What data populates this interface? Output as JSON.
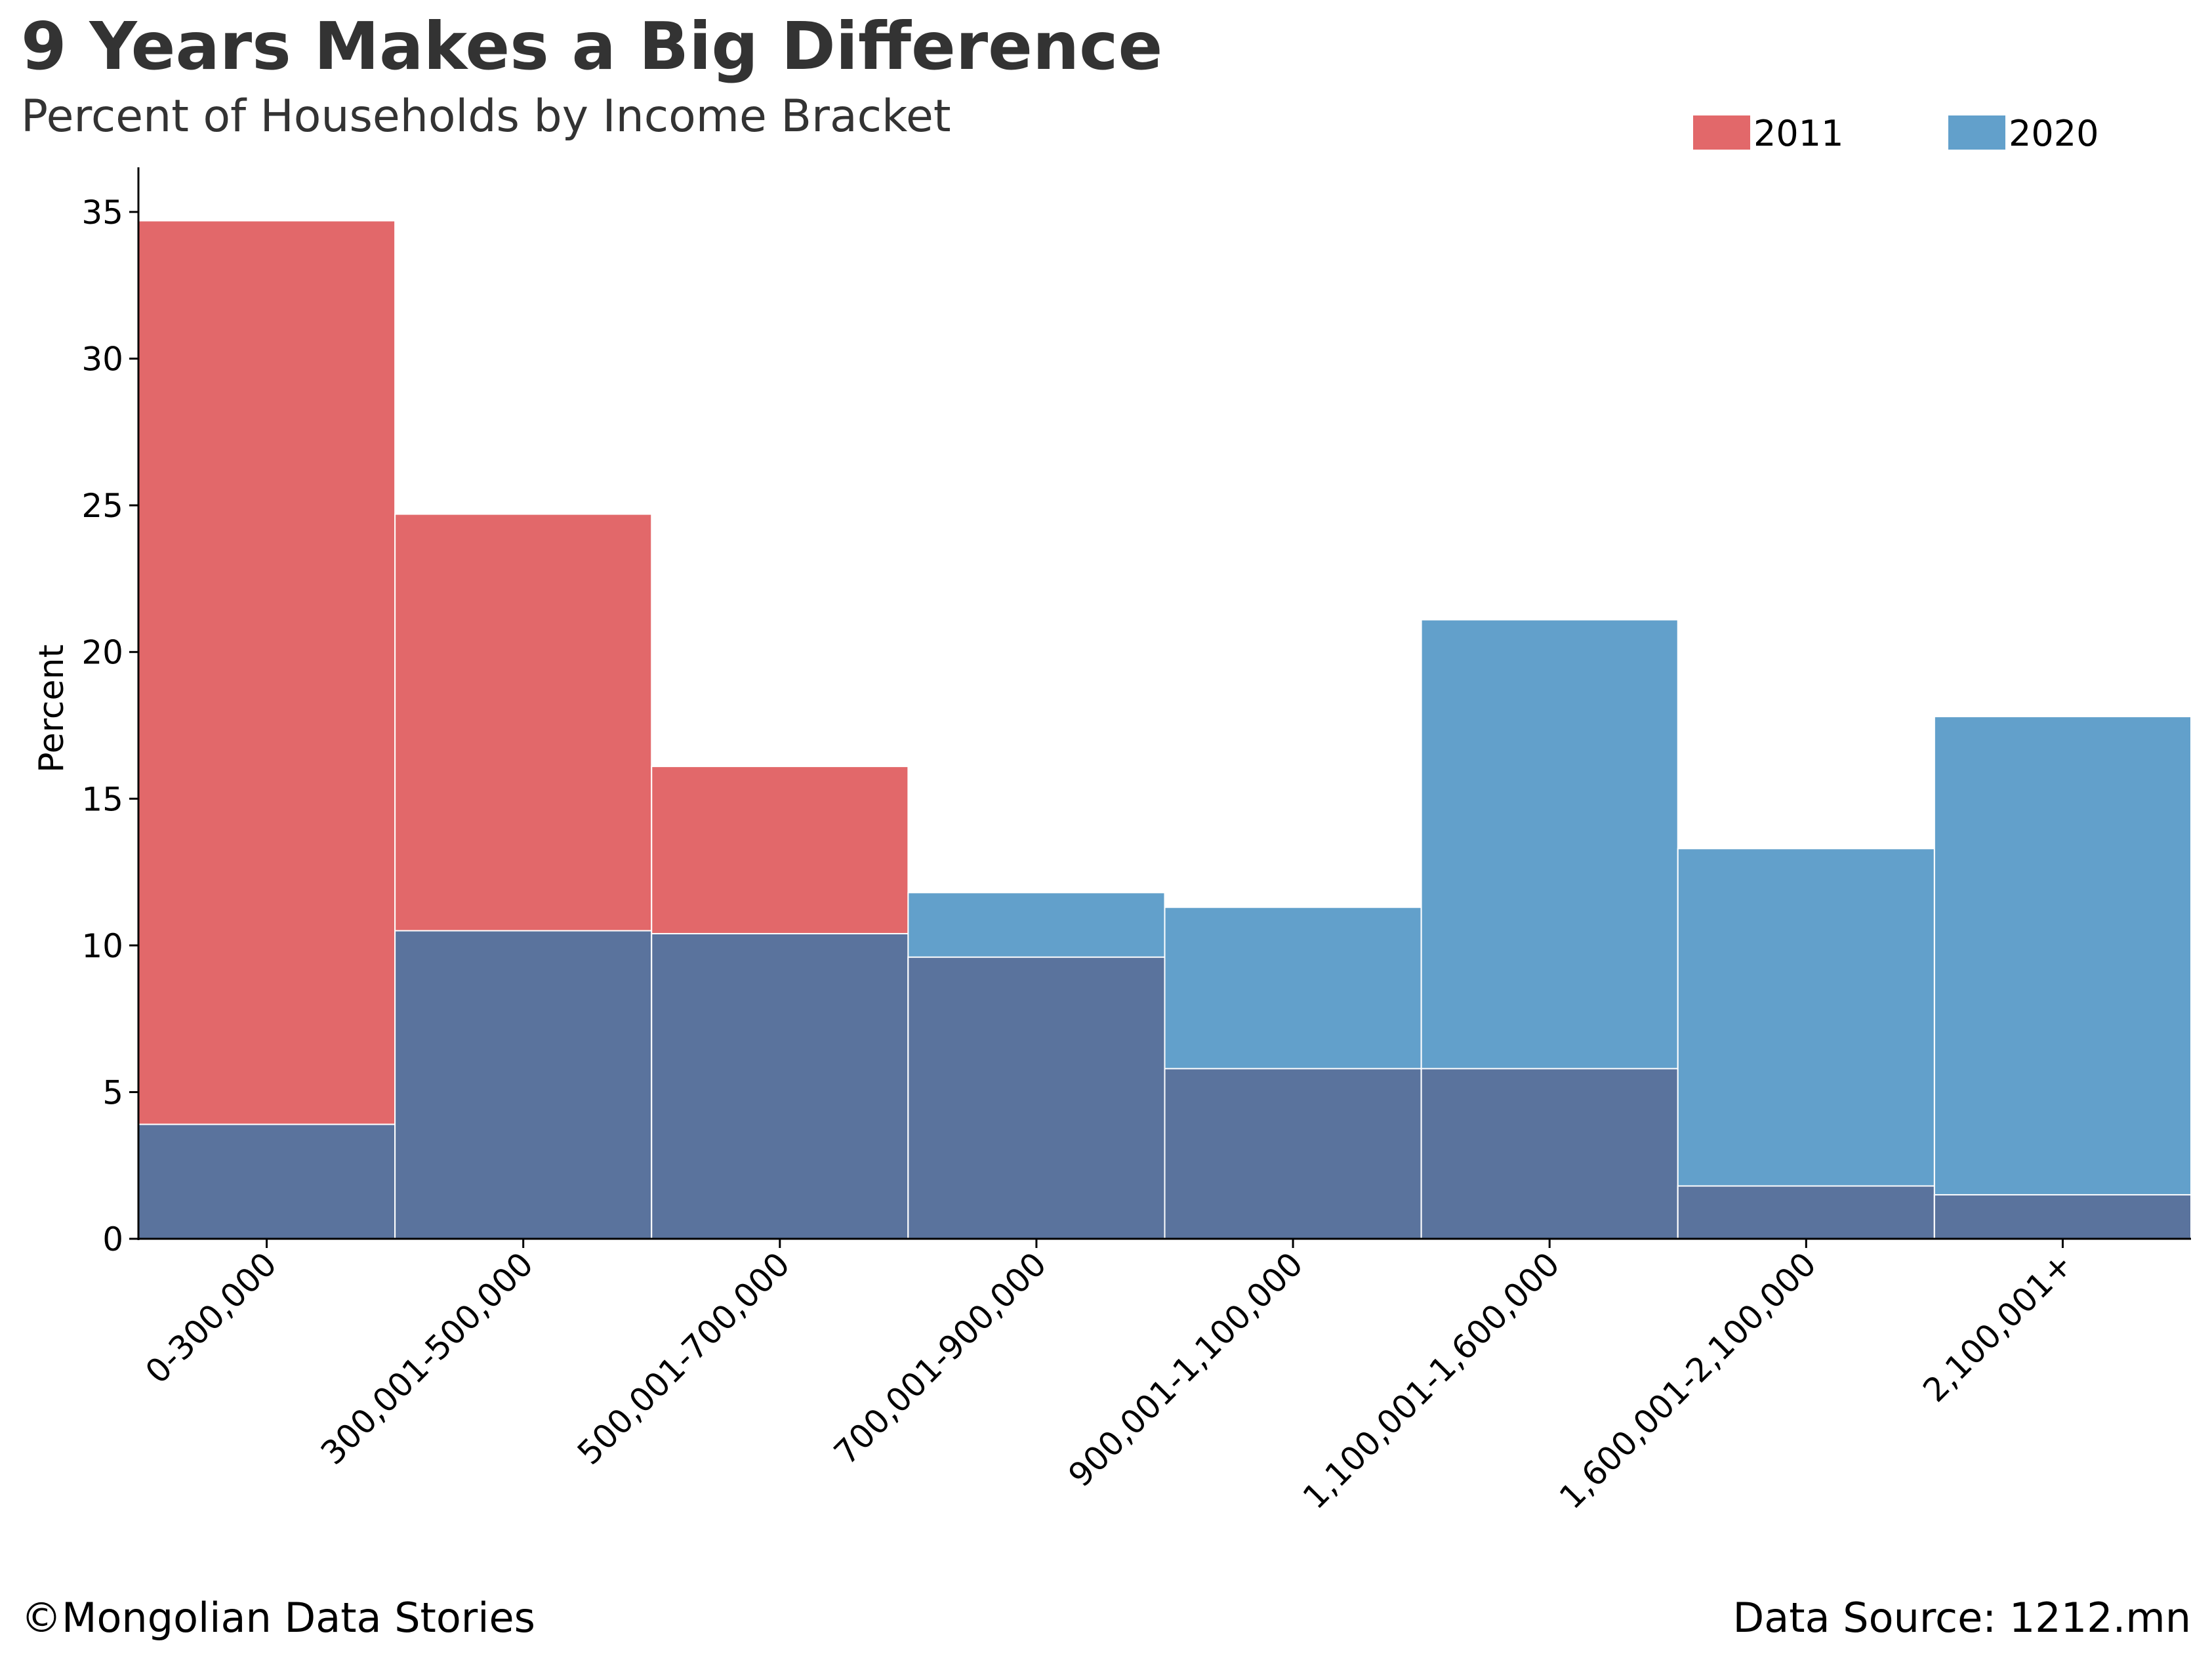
{
  "title": "9 Years Makes a Big Difference",
  "subtitle": "Percent of Households by Income Bracket",
  "footer_left": "©Mongolian Data Stories",
  "footer_right": "Data Source: 1212.mn",
  "colors": {
    "2011": "#e2686a",
    "2020": "#62a0cb",
    "overlap": "#5a739d",
    "text": "#333333"
  },
  "chart_data": {
    "type": "bar",
    "title": "9 Years Makes a Big Difference",
    "subtitle": "Percent of Households by Income Bracket",
    "xlabel": "",
    "ylabel": "Percent",
    "ylim": [
      0,
      36.5
    ],
    "yticks": [
      0,
      5,
      10,
      15,
      20,
      25,
      30,
      35
    ],
    "legend_position": "top-right",
    "grid": false,
    "categories": [
      "0-300,000",
      "300,001-500,000",
      "500,001-700,000",
      "700,001-900,000",
      "900,001-1,100,000",
      "1,100,001-1,600,000",
      "1,600,001-2,100,000",
      "2,100,001+"
    ],
    "series": [
      {
        "name": "2011",
        "values": [
          34.7,
          24.7,
          16.1,
          9.6,
          5.8,
          5.8,
          1.8,
          1.5
        ]
      },
      {
        "name": "2020",
        "values": [
          3.9,
          10.5,
          10.4,
          11.8,
          11.3,
          21.1,
          13.3,
          17.8
        ]
      }
    ]
  }
}
